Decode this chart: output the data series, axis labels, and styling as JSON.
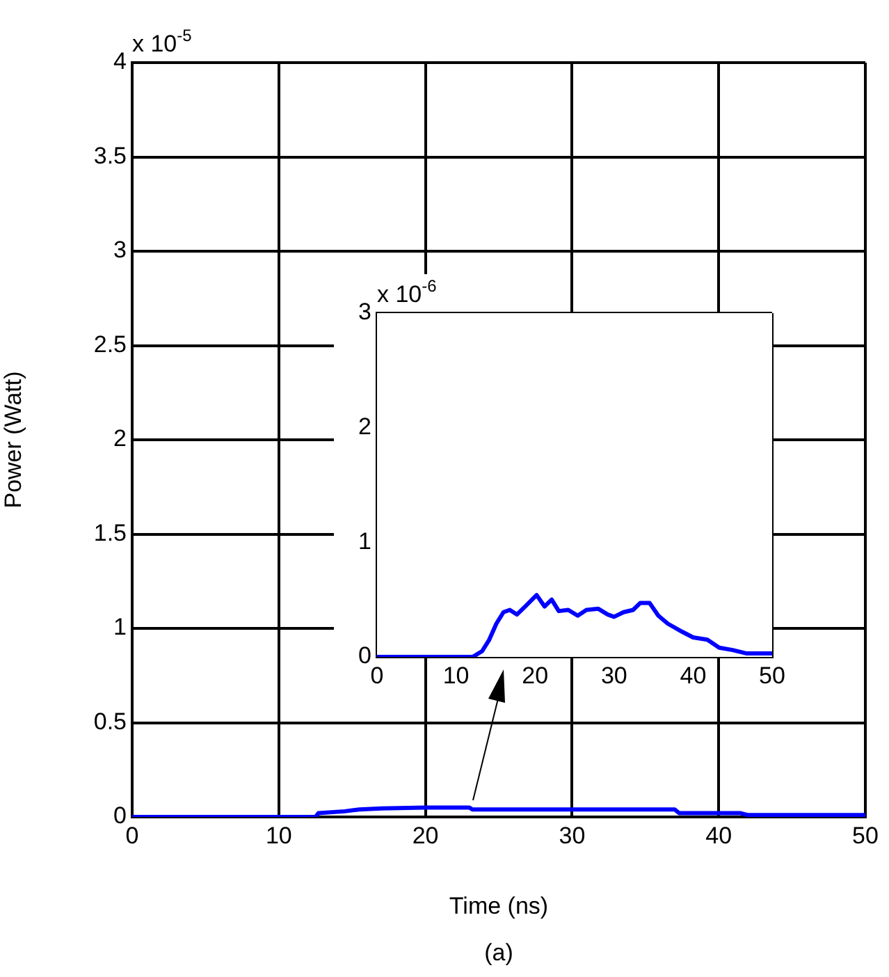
{
  "chart_data": [
    {
      "type": "line",
      "xlabel": "Time (ns)",
      "ylabel": "Power (Watt)",
      "annotations": [
        "x 10$^{-5}$",
        "(a)"
      ],
      "x": [
        0,
        12.5,
        12.7,
        14.5,
        15.5,
        17,
        20,
        23,
        23.2,
        37,
        37.3,
        41.5,
        42,
        50
      ],
      "series": [
        {
          "color": "#0000ff",
          "values": [
            0,
            0,
            0.02,
            0.03,
            0.04,
            0.045,
            0.05,
            0.05,
            0.04,
            0.04,
            0.02,
            0.02,
            0.01,
            0.01
          ]
        }
      ],
      "xlim": [
        0,
        50
      ],
      "xticks": [
        0,
        10,
        20,
        30,
        40,
        50
      ],
      "ylim": [
        0,
        4
      ],
      "yticks": [
        0,
        0.5,
        1,
        1.5,
        2,
        2.5,
        3,
        3.5,
        4
      ],
      "grid": true,
      "legend": false,
      "marker": "none",
      "line_style": "solid"
    },
    {
      "type": "line",
      "annotations": [
        "x 10$^{-6}$"
      ],
      "x": [
        0,
        12.1,
        13.3,
        14.2,
        15.1,
        16.0,
        16.8,
        17.7,
        18.9,
        20.2,
        21.2,
        22.1,
        23.0,
        24.2,
        25.4,
        26.5,
        28.0,
        29.2,
        30.0,
        31.2,
        32.4,
        33.3,
        34.5,
        35.6,
        36.8,
        38.6,
        40.0,
        41.8,
        43.3,
        45.0,
        46.8,
        50
      ],
      "series": [
        {
          "color": "#0000ff",
          "values": [
            0,
            0,
            0.05,
            0.15,
            0.29,
            0.39,
            0.41,
            0.37,
            0.45,
            0.54,
            0.44,
            0.5,
            0.4,
            0.41,
            0.36,
            0.41,
            0.42,
            0.37,
            0.35,
            0.39,
            0.41,
            0.47,
            0.47,
            0.36,
            0.29,
            0.22,
            0.17,
            0.15,
            0.08,
            0.06,
            0.03,
            0.03
          ]
        }
      ],
      "xlim": [
        0,
        50
      ],
      "xticks": [
        0,
        10,
        20,
        30,
        40,
        50
      ],
      "ylim": [
        0,
        3
      ],
      "yticks": [
        0,
        1,
        2,
        3
      ],
      "grid": true,
      "legend": false,
      "marker": "none",
      "line_style": "solid"
    }
  ]
}
